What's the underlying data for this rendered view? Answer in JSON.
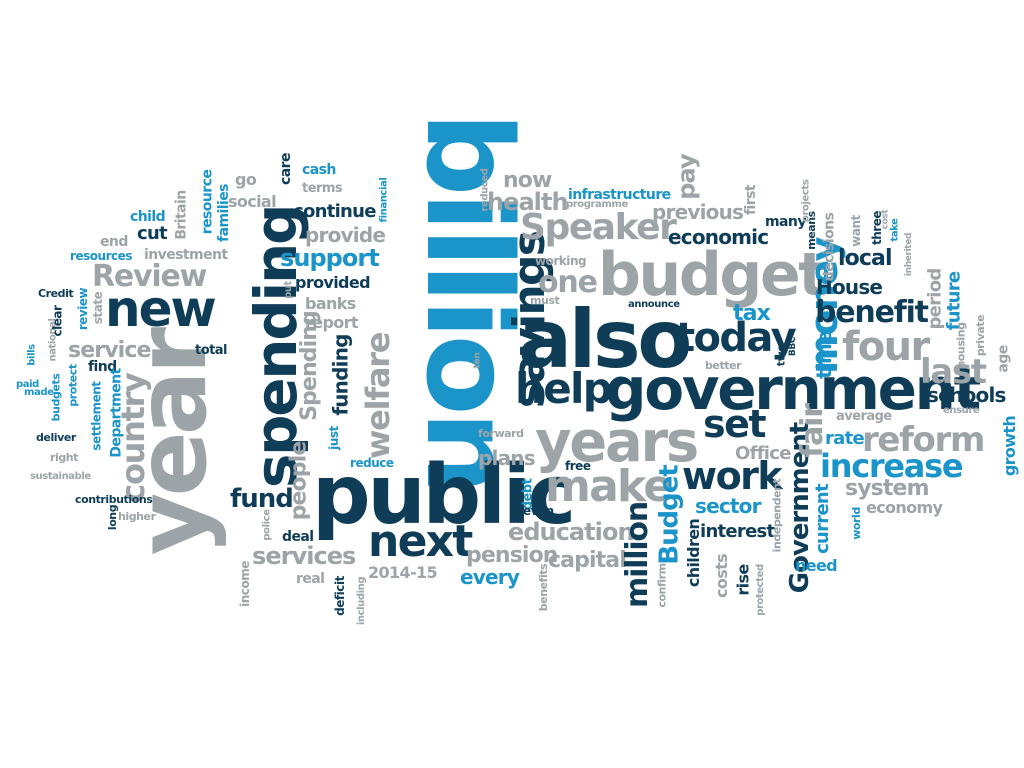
{
  "colors": {
    "navy": "#0f3d58",
    "blue": "#1b94c9",
    "grey": "#9da4a8",
    "dark_grey": "#5e676c"
  },
  "words": [
    {
      "text": "billion",
      "color": "blue"
    },
    {
      "text": "year",
      "color": "grey"
    },
    {
      "text": "public",
      "color": "navy"
    },
    {
      "text": "government",
      "color": "navy"
    },
    {
      "text": "also",
      "color": "navy"
    },
    {
      "text": "spending",
      "color": "navy"
    },
    {
      "text": "savings",
      "color": "navy"
    },
    {
      "text": "budget",
      "color": "grey"
    },
    {
      "text": "years",
      "color": "grey"
    },
    {
      "text": "new",
      "color": "navy"
    },
    {
      "text": "help",
      "color": "navy"
    },
    {
      "text": "today",
      "color": "navy"
    },
    {
      "text": "next",
      "color": "navy"
    },
    {
      "text": "make",
      "color": "grey"
    },
    {
      "text": "Speaker",
      "color": "grey"
    },
    {
      "text": "money",
      "color": "blue"
    },
    {
      "text": "four",
      "color": "grey"
    },
    {
      "text": "reform",
      "color": "grey"
    },
    {
      "text": "increase",
      "color": "blue"
    },
    {
      "text": "work",
      "color": "navy"
    },
    {
      "text": "set",
      "color": "navy"
    },
    {
      "text": "last",
      "color": "grey"
    },
    {
      "text": "benefit",
      "color": "navy"
    },
    {
      "text": "country",
      "color": "grey"
    },
    {
      "text": "welfare",
      "color": "grey"
    },
    {
      "text": "Review",
      "color": "grey"
    },
    {
      "text": "one",
      "color": "grey"
    },
    {
      "text": "fund",
      "color": "navy"
    },
    {
      "text": "services",
      "color": "grey"
    },
    {
      "text": "support",
      "color": "blue"
    },
    {
      "text": "service",
      "color": "grey"
    },
    {
      "text": "education",
      "color": "grey"
    },
    {
      "text": "pension",
      "color": "grey"
    },
    {
      "text": "capital",
      "color": "grey"
    },
    {
      "text": "every",
      "color": "blue"
    },
    {
      "text": "million",
      "color": "navy"
    },
    {
      "text": "Budget",
      "color": "blue"
    },
    {
      "text": "Government",
      "color": "navy"
    },
    {
      "text": "fair",
      "color": "grey"
    },
    {
      "text": "system",
      "color": "grey"
    },
    {
      "text": "schools",
      "color": "navy"
    },
    {
      "text": "health",
      "color": "grey"
    },
    {
      "text": "now",
      "color": "grey"
    },
    {
      "text": "economic",
      "color": "navy"
    },
    {
      "text": "previous",
      "color": "grey"
    },
    {
      "text": "local",
      "color": "navy"
    },
    {
      "text": "House",
      "color": "navy"
    },
    {
      "text": "tax",
      "color": "blue"
    },
    {
      "text": "time",
      "color": "blue"
    },
    {
      "text": "sector",
      "color": "blue"
    },
    {
      "text": "rate",
      "color": "blue"
    },
    {
      "text": "growth",
      "color": "blue"
    },
    {
      "text": "future",
      "color": "blue"
    },
    {
      "text": "period",
      "color": "grey"
    },
    {
      "text": "plans",
      "color": "grey"
    },
    {
      "text": "Office",
      "color": "grey"
    },
    {
      "text": "interest",
      "color": "navy"
    },
    {
      "text": "children",
      "color": "navy"
    },
    {
      "text": "costs",
      "color": "grey"
    },
    {
      "text": "rise",
      "color": "navy"
    },
    {
      "text": "current",
      "color": "blue"
    },
    {
      "text": "economy",
      "color": "grey"
    },
    {
      "text": "need",
      "color": "blue"
    },
    {
      "text": "pay",
      "color": "grey"
    },
    {
      "text": "infrastructure",
      "color": "blue"
    },
    {
      "text": "continue",
      "color": "navy"
    },
    {
      "text": "provide",
      "color": "grey"
    },
    {
      "text": "provided",
      "color": "navy"
    },
    {
      "text": "banks",
      "color": "grey"
    },
    {
      "text": "report",
      "color": "grey"
    },
    {
      "text": "funding",
      "color": "navy"
    },
    {
      "text": "Spending",
      "color": "grey"
    },
    {
      "text": "people",
      "color": "grey"
    },
    {
      "text": "social",
      "color": "grey"
    },
    {
      "text": "go",
      "color": "grey"
    },
    {
      "text": "care",
      "color": "navy"
    },
    {
      "text": "cash",
      "color": "blue"
    },
    {
      "text": "terms",
      "color": "grey"
    },
    {
      "text": "investment",
      "color": "grey"
    },
    {
      "text": "resources",
      "color": "blue"
    },
    {
      "text": "end",
      "color": "grey"
    },
    {
      "text": "cut",
      "color": "navy"
    },
    {
      "text": "child",
      "color": "blue"
    },
    {
      "text": "Britain",
      "color": "grey"
    },
    {
      "text": "resource",
      "color": "blue"
    },
    {
      "text": "families",
      "color": "blue"
    },
    {
      "text": "Credit",
      "color": "navy"
    },
    {
      "text": "review",
      "color": "blue"
    },
    {
      "text": "state",
      "color": "grey"
    },
    {
      "text": "total",
      "color": "navy"
    },
    {
      "text": "find",
      "color": "navy"
    },
    {
      "text": "Department",
      "color": "blue"
    },
    {
      "text": "settlement",
      "color": "blue"
    },
    {
      "text": "deliver",
      "color": "navy"
    },
    {
      "text": "right",
      "color": "grey"
    },
    {
      "text": "sustainable",
      "color": "grey"
    },
    {
      "text": "contributions",
      "color": "navy"
    },
    {
      "text": "higher",
      "color": "grey"
    },
    {
      "text": "long",
      "color": "navy"
    },
    {
      "text": "income",
      "color": "grey"
    },
    {
      "text": "police",
      "color": "grey"
    },
    {
      "text": "deal",
      "color": "navy"
    },
    {
      "text": "real",
      "color": "grey"
    },
    {
      "text": "deficit",
      "color": "navy"
    },
    {
      "text": "including",
      "color": "grey"
    },
    {
      "text": "2014-15",
      "color": "grey"
    },
    {
      "text": "benefits",
      "color": "grey"
    },
    {
      "text": "reduce",
      "color": "blue"
    },
    {
      "text": "just",
      "color": "blue"
    },
    {
      "text": "forward",
      "color": "grey"
    },
    {
      "text": "debt",
      "color": "blue"
    },
    {
      "text": "even",
      "color": "navy"
    },
    {
      "text": "free",
      "color": "navy"
    },
    {
      "text": "confirm",
      "color": "grey"
    },
    {
      "text": "protected",
      "color": "grey"
    },
    {
      "text": "independent",
      "color": "grey"
    },
    {
      "text": "world",
      "color": "blue"
    },
    {
      "text": "average",
      "color": "grey"
    },
    {
      "text": "ensure",
      "color": "grey"
    },
    {
      "text": "housing",
      "color": "grey"
    },
    {
      "text": "private",
      "color": "grey"
    },
    {
      "text": "age",
      "color": "grey"
    },
    {
      "text": "better",
      "color": "grey"
    },
    {
      "text": "two",
      "color": "navy"
    },
    {
      "text": "BBC",
      "color": "navy"
    },
    {
      "text": "ten",
      "color": "grey"
    },
    {
      "text": "announce",
      "color": "navy"
    },
    {
      "text": "must",
      "color": "grey"
    },
    {
      "text": "working",
      "color": "grey"
    },
    {
      "text": "reduced",
      "color": "grey"
    },
    {
      "text": "financial",
      "color": "blue"
    },
    {
      "text": "programme",
      "color": "grey"
    },
    {
      "text": "first",
      "color": "grey"
    },
    {
      "text": "many",
      "color": "navy"
    },
    {
      "text": "means",
      "color": "navy"
    },
    {
      "text": "decisions",
      "color": "grey"
    },
    {
      "text": "projects",
      "color": "grey"
    },
    {
      "text": "want",
      "color": "grey"
    },
    {
      "text": "three",
      "color": "navy"
    },
    {
      "text": "cost",
      "color": "grey"
    },
    {
      "text": "take",
      "color": "blue"
    },
    {
      "text": "inherited",
      "color": "grey"
    },
    {
      "text": "put",
      "color": "grey"
    },
    {
      "text": "national",
      "color": "grey"
    },
    {
      "text": "clear",
      "color": "navy"
    },
    {
      "text": "protect",
      "color": "blue"
    },
    {
      "text": "budgets",
      "color": "blue"
    },
    {
      "text": "made",
      "color": "blue"
    },
    {
      "text": "bills",
      "color": "blue"
    },
    {
      "text": "paid",
      "color": "blue"
    }
  ]
}
